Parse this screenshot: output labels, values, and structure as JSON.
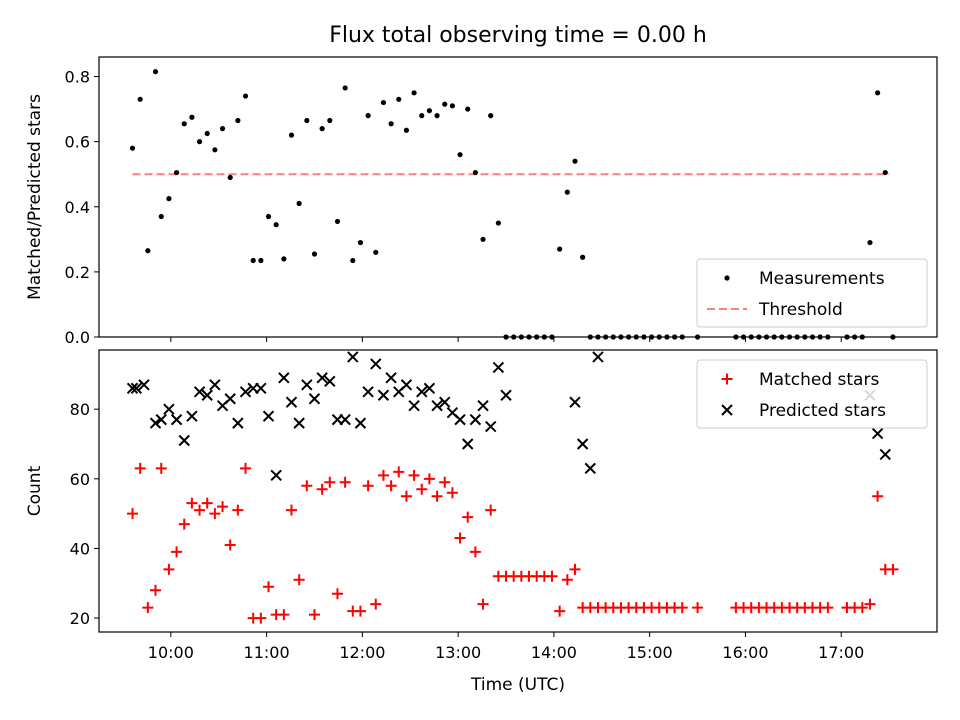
{
  "chart_data": {
    "title": "Flux total observing time = 0.00 h",
    "xlabel": "Time (UTC)",
    "x_unit": "hours since 00:00 UTC",
    "xlim": [
      9.25,
      18.0
    ],
    "xticks": [
      10,
      11,
      12,
      13,
      14,
      15,
      16,
      17
    ],
    "xticklabels": [
      "10:00",
      "11:00",
      "12:00",
      "13:00",
      "14:00",
      "15:00",
      "16:00",
      "17:00"
    ],
    "colors": {
      "measurements": "#000000",
      "threshold": "#ff7f7f",
      "matched": "#ff0000",
      "predicted": "#000000"
    },
    "panels": [
      {
        "type": "scatter",
        "ylabel": "Matched/Predicted stars",
        "ylim": [
          0.0,
          0.86
        ],
        "yticks": [
          0.0,
          0.2,
          0.4,
          0.6,
          0.8
        ],
        "yticklabels": [
          "0.0",
          "0.2",
          "0.4",
          "0.6",
          "0.8"
        ],
        "legend_position": "lower-right",
        "legend": [
          {
            "label": "Measurements",
            "marker": "dot"
          },
          {
            "label": "Threshold",
            "marker": "dashed-line"
          }
        ],
        "threshold": {
          "value": 0.5,
          "x_range": [
            9.6,
            17.5
          ]
        },
        "series": [
          {
            "name": "Measurements",
            "x": [
              9.6,
              9.68,
              9.76,
              9.84,
              9.9,
              9.98,
              10.06,
              10.14,
              10.22,
              10.3,
              10.38,
              10.46,
              10.54,
              10.62,
              10.7,
              10.78,
              10.86,
              10.94,
              11.02,
              11.1,
              11.18,
              11.26,
              11.34,
              11.42,
              11.5,
              11.58,
              11.66,
              11.74,
              11.82,
              11.9,
              11.98,
              12.06,
              12.14,
              12.22,
              12.3,
              12.38,
              12.46,
              12.54,
              12.62,
              12.7,
              12.78,
              12.86,
              12.94,
              13.02,
              13.1,
              13.18,
              13.26,
              13.34,
              13.42,
              13.5,
              13.58,
              13.66,
              13.74,
              13.82,
              13.9,
              13.98,
              14.06,
              14.14,
              14.22,
              14.3,
              14.38,
              14.46,
              14.54,
              14.62,
              14.7,
              14.78,
              14.86,
              14.94,
              15.02,
              15.1,
              15.18,
              15.26,
              15.34,
              15.5,
              15.9,
              15.98,
              16.06,
              16.14,
              16.22,
              16.3,
              16.38,
              16.46,
              16.54,
              16.62,
              16.7,
              16.78,
              16.86,
              17.06,
              17.14,
              17.22,
              17.3,
              17.38,
              17.46,
              17.54
            ],
            "y": [
              0.58,
              0.73,
              0.265,
              0.815,
              0.37,
              0.425,
              0.505,
              0.655,
              0.675,
              0.6,
              0.625,
              0.575,
              0.64,
              0.49,
              0.665,
              0.74,
              0.235,
              0.235,
              0.37,
              0.345,
              0.24,
              0.62,
              0.41,
              0.665,
              0.255,
              0.64,
              0.665,
              0.355,
              0.765,
              0.235,
              0.29,
              0.68,
              0.26,
              0.72,
              0.655,
              0.73,
              0.635,
              0.75,
              0.68,
              0.695,
              0.68,
              0.715,
              0.71,
              0.56,
              0.7,
              0.505,
              0.3,
              0.68,
              0.35,
              0.0,
              0.0,
              0.0,
              0.0,
              0.0,
              0.0,
              0.0,
              0.27,
              0.445,
              0.54,
              0.245,
              0.0,
              0.0,
              0.0,
              0.0,
              0.0,
              0.0,
              0.0,
              0.0,
              0.0,
              0.0,
              0.0,
              0.0,
              0.0,
              0.0,
              0.0,
              0.0,
              0.0,
              0.0,
              0.0,
              0.0,
              0.0,
              0.0,
              0.0,
              0.0,
              0.0,
              0.0,
              0.0,
              0.0,
              0.0,
              0.0,
              0.29,
              0.75,
              0.505,
              0.0
            ]
          }
        ]
      },
      {
        "type": "scatter",
        "ylabel": "Count",
        "ylim": [
          16,
          97
        ],
        "yticks": [
          20,
          40,
          60,
          80
        ],
        "yticklabels": [
          "20",
          "40",
          "60",
          "80"
        ],
        "legend_position": "upper-right",
        "legend": [
          {
            "label": "Matched stars",
            "marker": "plus"
          },
          {
            "label": "Predicted stars",
            "marker": "x"
          }
        ],
        "series": [
          {
            "name": "Matched stars",
            "x": [
              9.6,
              9.68,
              9.76,
              9.84,
              9.9,
              9.98,
              10.06,
              10.14,
              10.22,
              10.3,
              10.38,
              10.46,
              10.54,
              10.62,
              10.7,
              10.78,
              10.86,
              10.94,
              11.02,
              11.1,
              11.18,
              11.26,
              11.34,
              11.42,
              11.5,
              11.58,
              11.66,
              11.74,
              11.82,
              11.9,
              11.98,
              12.06,
              12.14,
              12.22,
              12.3,
              12.38,
              12.46,
              12.54,
              12.62,
              12.7,
              12.78,
              12.86,
              12.94,
              13.02,
              13.1,
              13.18,
              13.26,
              13.34,
              13.42,
              13.5,
              13.58,
              13.66,
              13.74,
              13.82,
              13.9,
              13.98,
              14.06,
              14.14,
              14.22,
              14.3,
              14.38,
              14.46,
              14.54,
              14.62,
              14.7,
              14.78,
              14.86,
              14.94,
              15.02,
              15.1,
              15.18,
              15.26,
              15.34,
              15.5,
              15.9,
              15.98,
              16.06,
              16.14,
              16.22,
              16.3,
              16.38,
              16.46,
              16.54,
              16.62,
              16.7,
              16.78,
              16.86,
              17.06,
              17.14,
              17.22,
              17.3,
              17.38,
              17.46,
              17.54
            ],
            "y": [
              50,
              63,
              23,
              28,
              63,
              34,
              39,
              47,
              53,
              51,
              53,
              50,
              52,
              41,
              51,
              63,
              20,
              20,
              29,
              21,
              21,
              51,
              31,
              58,
              21,
              57,
              59,
              27,
              59,
              22,
              22,
              58,
              24,
              61,
              58,
              62,
              55,
              61,
              57,
              60,
              55,
              59,
              56,
              43,
              49,
              39,
              24,
              51,
              32,
              32,
              32,
              32,
              32,
              32,
              32,
              32,
              22,
              31,
              34,
              23,
              23,
              23,
              23,
              23,
              23,
              23,
              23,
              23,
              23,
              23,
              23,
              23,
              23,
              23,
              23,
              23,
              23,
              23,
              23,
              23,
              23,
              23,
              23,
              23,
              23,
              23,
              23,
              23,
              23,
              23,
              24,
              55,
              34,
              34
            ]
          },
          {
            "name": "Predicted stars",
            "x": [
              9.6,
              9.64,
              9.72,
              9.84,
              9.9,
              9.98,
              10.06,
              10.14,
              10.22,
              10.3,
              10.38,
              10.46,
              10.54,
              10.62,
              10.7,
              10.78,
              10.86,
              10.94,
              11.02,
              11.1,
              11.18,
              11.26,
              11.34,
              11.42,
              11.5,
              11.58,
              11.66,
              11.74,
              11.82,
              11.9,
              11.98,
              12.06,
              12.14,
              12.22,
              12.3,
              12.38,
              12.46,
              12.54,
              12.62,
              12.7,
              12.78,
              12.86,
              12.94,
              13.02,
              13.1,
              13.18,
              13.26,
              13.34,
              13.42,
              13.5,
              14.22,
              14.3,
              14.38,
              14.46,
              17.3,
              17.38,
              17.46
            ],
            "y": [
              86,
              86,
              87,
              76,
              77,
              80,
              77,
              71,
              78,
              85,
              84,
              87,
              81,
              83,
              76,
              85,
              86,
              86,
              78,
              61,
              89,
              82,
              76,
              87,
              83,
              89,
              88,
              77,
              77,
              95,
              76,
              85,
              93,
              84,
              89,
              85,
              87,
              81,
              85,
              86,
              81,
              82,
              79,
              77,
              70,
              77,
              81,
              75,
              92,
              84,
              82,
              70,
              63,
              95,
              84,
              73,
              67
            ]
          }
        ]
      }
    ]
  }
}
